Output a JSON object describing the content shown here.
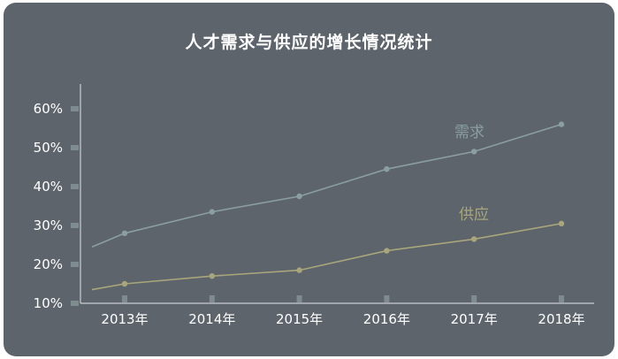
{
  "chart_data": {
    "type": "line",
    "title": "人才需求与供应的增长情况统计",
    "categories": [
      "2013年",
      "2014年",
      "2015年",
      "2016年",
      "2017年",
      "2018年"
    ],
    "yticks": [
      "10%",
      "20%",
      "30%",
      "40%",
      "50%",
      "60%"
    ],
    "ylim": [
      10,
      60
    ],
    "series": [
      {
        "name": "需求",
        "values": [
          28,
          33.5,
          37.5,
          44.5,
          49,
          56
        ],
        "start": 24.5,
        "color": "#8a9ea3"
      },
      {
        "name": "供应",
        "values": [
          15,
          17,
          18.5,
          23.5,
          26.5,
          30.5
        ],
        "start": 13.5,
        "color": "#a8a67a"
      }
    ],
    "grid": false
  }
}
